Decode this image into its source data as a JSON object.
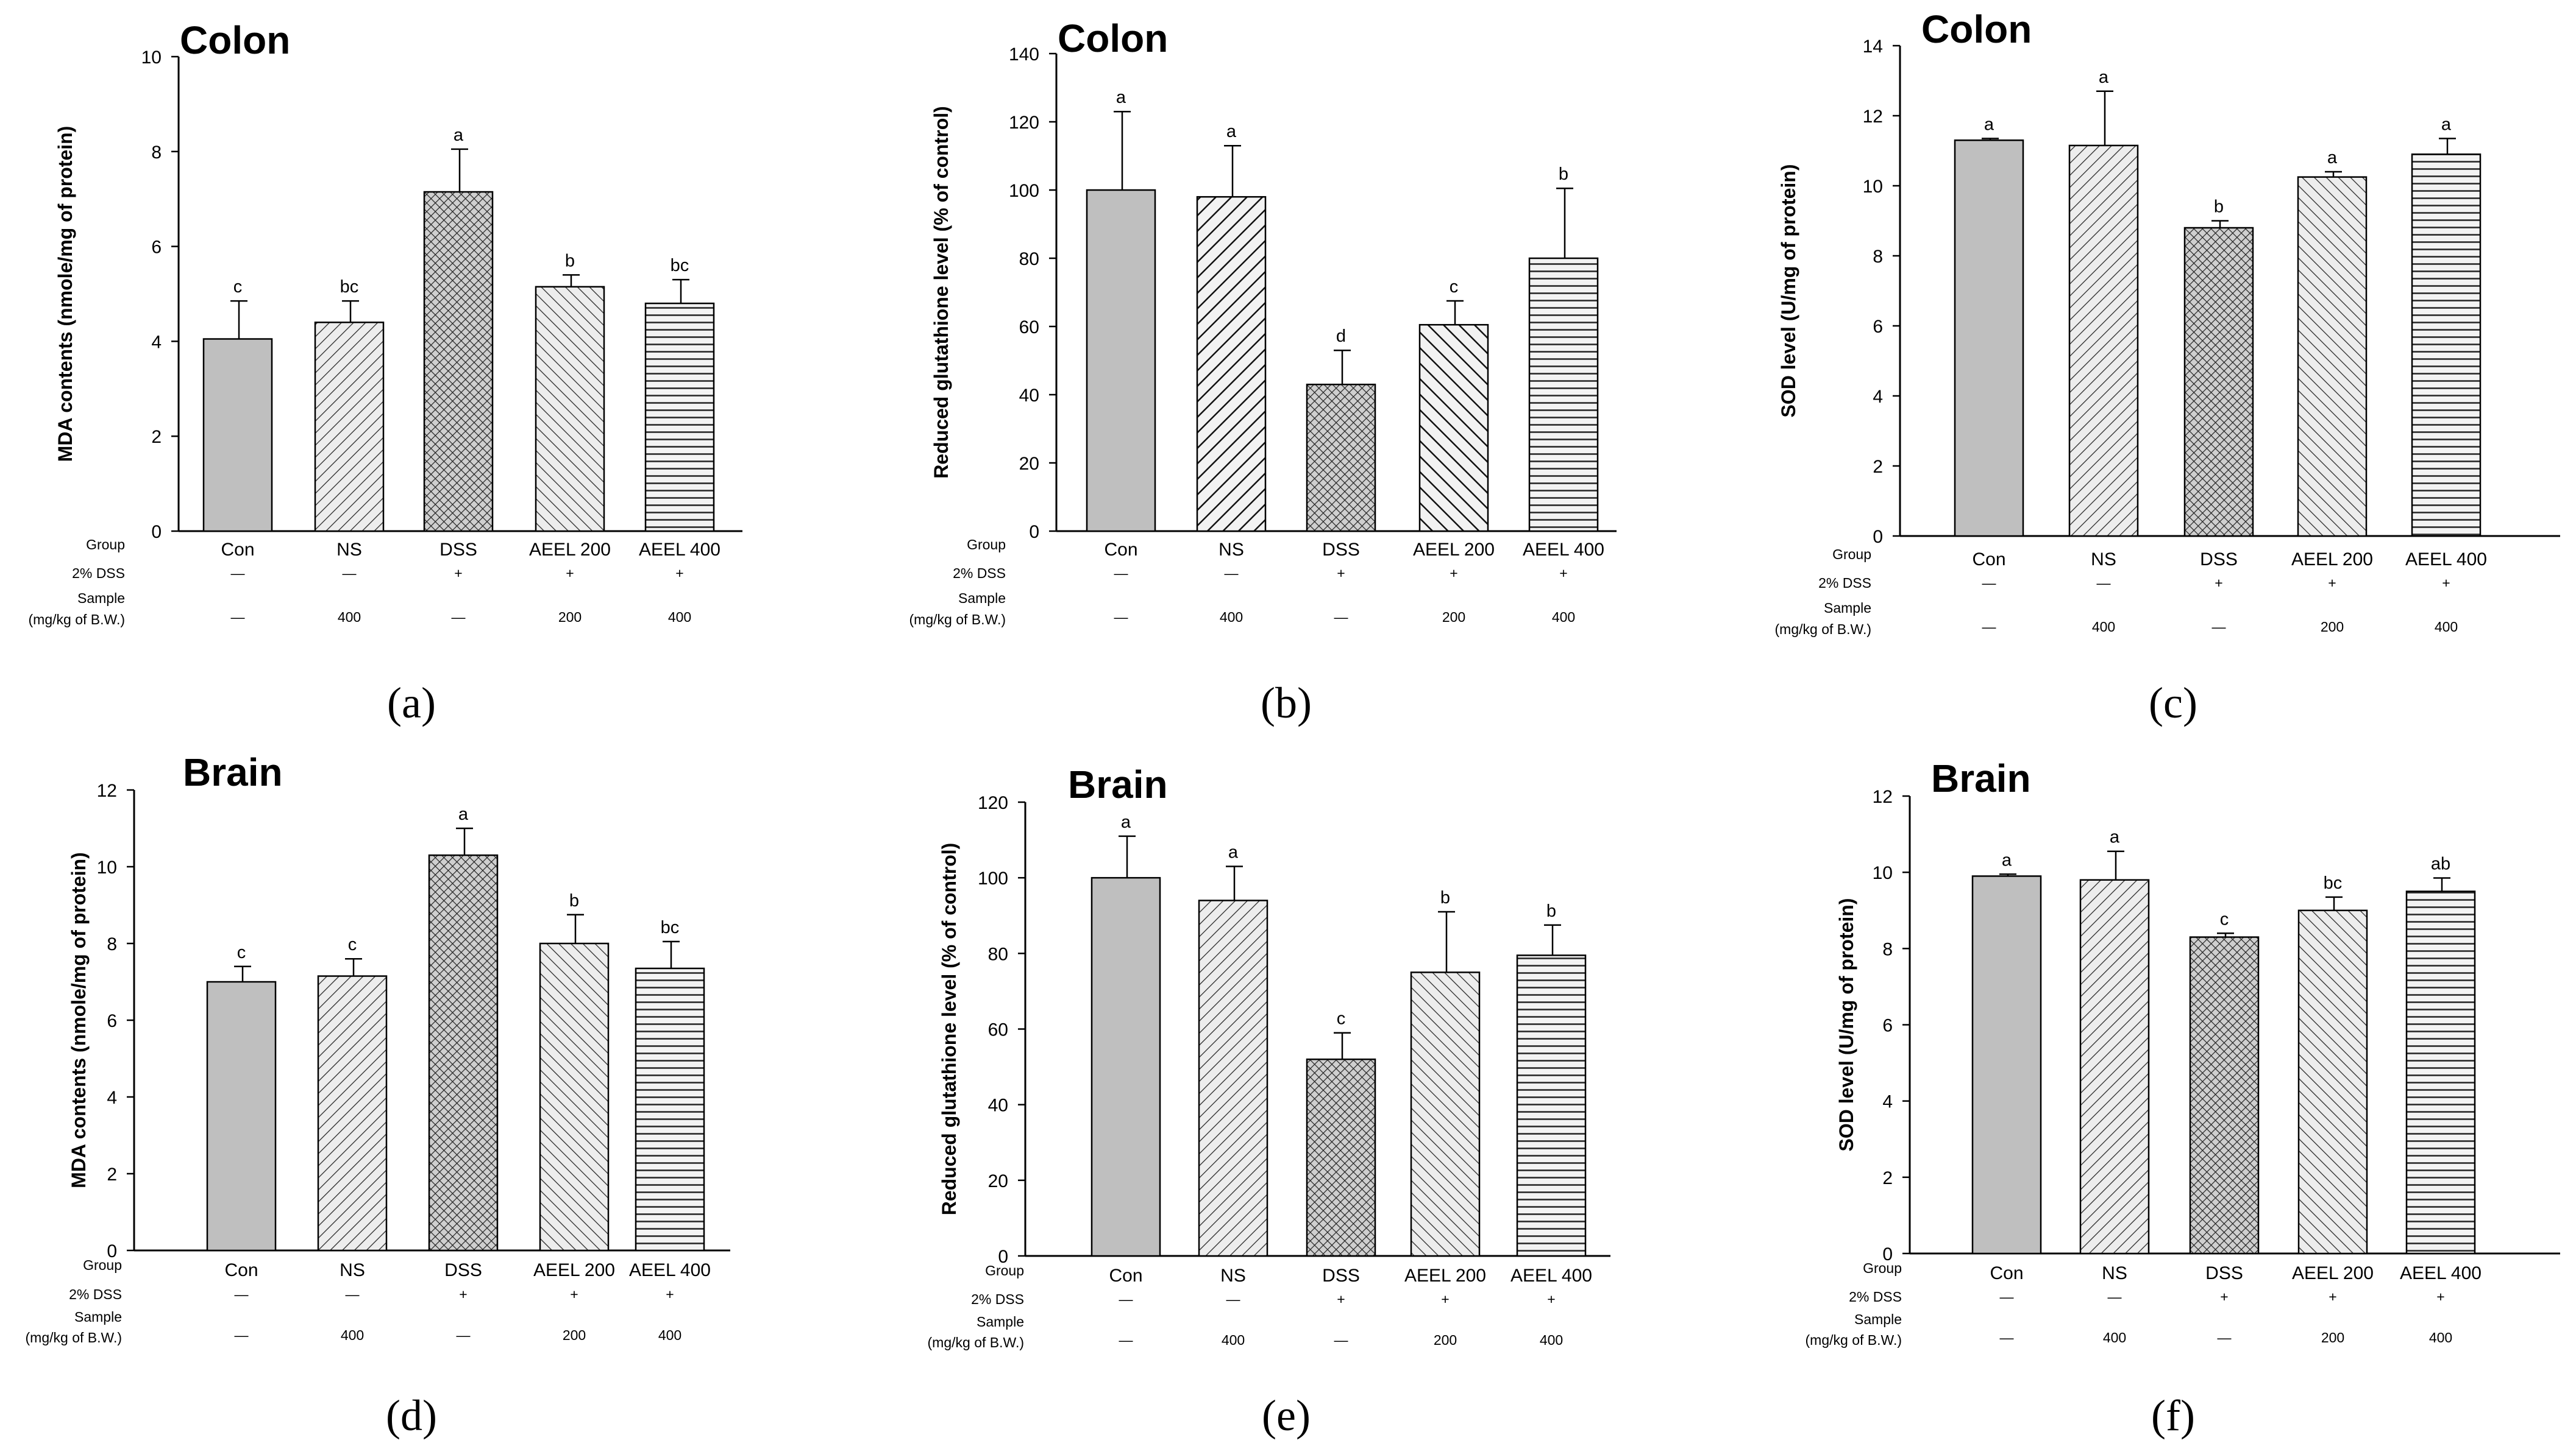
{
  "chart_data": [
    {
      "type": "bar",
      "panel_label": "(a)",
      "title": "Colon",
      "ylabel": "MDA contents (nmole/mg of protein)",
      "xlabel": "",
      "ylim": [
        0,
        10
      ],
      "yticks": [
        "0",
        "2",
        "4",
        "6",
        "8",
        "10"
      ],
      "categories": [
        "Con",
        "NS",
        "DSS",
        "AEEL 200",
        "AEEL 400"
      ],
      "values": [
        4.05,
        4.4,
        7.15,
        5.15,
        4.8
      ],
      "errors": [
        0.8,
        0.45,
        0.9,
        0.25,
        0.5
      ],
      "letters": [
        "c",
        "bc",
        "a",
        "b",
        "bc"
      ],
      "patterns": [
        "solid",
        "diag-fine",
        "cross",
        "back-fine",
        "horiz"
      ],
      "row_labels": [
        "Group",
        "2% DSS",
        "Sample",
        "(mg/kg of B.W.)"
      ],
      "dss": [
        "—",
        "—",
        "+",
        "+",
        "+"
      ],
      "sample": [
        "—",
        "400",
        "—",
        "200",
        "400"
      ]
    },
    {
      "type": "bar",
      "panel_label": "(b)",
      "title": "Colon",
      "ylabel": "Reduced glutathione level (% of control)",
      "xlabel": "",
      "ylim": [
        0,
        140
      ],
      "yticks": [
        "0",
        "20",
        "40",
        "60",
        "80",
        "100",
        "120",
        "140"
      ],
      "categories": [
        "Con",
        "NS",
        "DSS",
        "AEEL 200",
        "AEEL 400"
      ],
      "values": [
        100,
        98,
        43,
        60.5,
        80
      ],
      "errors": [
        23,
        15,
        10,
        7,
        20.5
      ],
      "letters": [
        "a",
        "a",
        "d",
        "c",
        "b"
      ],
      "patterns": [
        "solid",
        "diag-bold",
        "cross",
        "back-bold",
        "horiz"
      ],
      "row_labels": [
        "Group",
        "2% DSS",
        "Sample",
        "(mg/kg of B.W.)"
      ],
      "dss": [
        "—",
        "—",
        "+",
        "+",
        "+"
      ],
      "sample": [
        "—",
        "400",
        "—",
        "200",
        "400"
      ]
    },
    {
      "type": "bar",
      "panel_label": "(c)",
      "title": "Colon",
      "ylabel": "SOD level (U/mg of protein)",
      "xlabel": "",
      "ylim": [
        0,
        14
      ],
      "yticks": [
        "0",
        "2",
        "4",
        "6",
        "8",
        "10",
        "12",
        "14"
      ],
      "categories": [
        "Con",
        "NS",
        "DSS",
        "AEEL 200",
        "AEEL 400"
      ],
      "values": [
        11.3,
        11.15,
        8.8,
        10.25,
        10.9
      ],
      "errors": [
        0.05,
        1.55,
        0.2,
        0.15,
        0.45
      ],
      "letters": [
        "a",
        "a",
        "b",
        "a",
        "a"
      ],
      "patterns": [
        "solid",
        "diag-fine",
        "cross",
        "back-fine",
        "horiz"
      ],
      "row_labels": [
        "Group",
        "2% DSS",
        "Sample",
        "(mg/kg of B.W.)"
      ],
      "dss": [
        "—",
        "—",
        "+",
        "+",
        "+"
      ],
      "sample": [
        "—",
        "400",
        "—",
        "200",
        "400"
      ]
    },
    {
      "type": "bar",
      "panel_label": "(d)",
      "title": "Brain",
      "ylabel": "MDA contents (nmole/mg of protein)",
      "xlabel": "",
      "ylim": [
        0,
        12
      ],
      "yticks": [
        "0",
        "2",
        "4",
        "6",
        "8",
        "10",
        "12"
      ],
      "categories": [
        "Con",
        "NS",
        "DSS",
        "AEEL 200",
        "AEEL 400"
      ],
      "values": [
        7.0,
        7.15,
        10.3,
        8.0,
        7.35
      ],
      "errors": [
        0.4,
        0.45,
        0.7,
        0.75,
        0.7
      ],
      "letters": [
        "c",
        "c",
        "a",
        "b",
        "bc"
      ],
      "patterns": [
        "solid",
        "diag-fine",
        "cross",
        "back-fine",
        "horiz"
      ],
      "row_labels": [
        "Group",
        "2% DSS",
        "Sample",
        "(mg/kg of B.W.)"
      ],
      "dss": [
        "—",
        "—",
        "+",
        "+",
        "+"
      ],
      "sample": [
        "—",
        "400",
        "—",
        "200",
        "400"
      ]
    },
    {
      "type": "bar",
      "panel_label": "(e)",
      "title": "Brain",
      "ylabel": "Reduced glutathione level (% of control)",
      "xlabel": "",
      "ylim": [
        0,
        120
      ],
      "yticks": [
        "0",
        "20",
        "40",
        "60",
        "80",
        "100",
        "120"
      ],
      "categories": [
        "Con",
        "NS",
        "DSS",
        "AEEL 200",
        "AEEL 400"
      ],
      "values": [
        100,
        94,
        52,
        75,
        79.5
      ],
      "errors": [
        11,
        9,
        7,
        16,
        8
      ],
      "letters": [
        "a",
        "a",
        "c",
        "b",
        "b"
      ],
      "patterns": [
        "solid",
        "diag-fine",
        "cross",
        "back-fine",
        "horiz"
      ],
      "row_labels": [
        "Group",
        "2% DSS",
        "Sample",
        "(mg/kg of B.W.)"
      ],
      "dss": [
        "—",
        "—",
        "+",
        "+",
        "+"
      ],
      "sample": [
        "—",
        "400",
        "—",
        "200",
        "400"
      ]
    },
    {
      "type": "bar",
      "panel_label": "(f)",
      "title": "Brain",
      "ylabel": "SOD level (U/mg of protein)",
      "xlabel": "",
      "ylim": [
        0,
        12
      ],
      "yticks": [
        "0",
        "2",
        "4",
        "6",
        "8",
        "10",
        "12"
      ],
      "categories": [
        "Con",
        "NS",
        "DSS",
        "AEEL 200",
        "AEEL 400"
      ],
      "values": [
        9.9,
        9.8,
        8.3,
        9.0,
        9.5
      ],
      "errors": [
        0.05,
        0.75,
        0.1,
        0.35,
        0.35
      ],
      "letters": [
        "a",
        "a",
        "c",
        "bc",
        "ab"
      ],
      "patterns": [
        "solid",
        "diag-fine",
        "cross",
        "back-fine",
        "horiz"
      ],
      "row_labels": [
        "Group",
        "2% DSS",
        "Sample",
        "(mg/kg of B.W.)"
      ],
      "dss": [
        "—",
        "—",
        "+",
        "+",
        "+"
      ],
      "sample": [
        "—",
        "400",
        "—",
        "200",
        "400"
      ]
    }
  ]
}
